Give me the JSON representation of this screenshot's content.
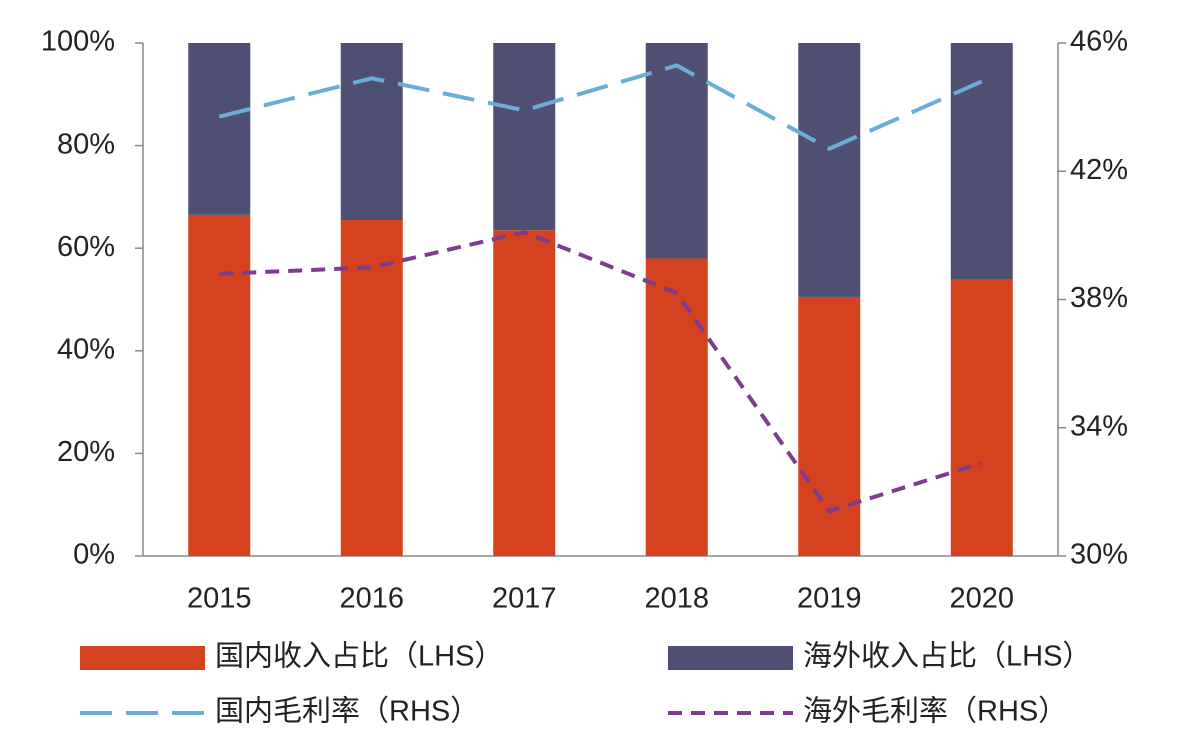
{
  "chart_data": {
    "type": "bar-line",
    "categories": [
      "2015",
      "2016",
      "2017",
      "2018",
      "2019",
      "2020"
    ],
    "series": [
      {
        "name": "国内收入占比（LHS）",
        "type": "bar",
        "color": "#d4421f",
        "values": [
          66.5,
          65.5,
          63.5,
          58,
          50.5,
          54
        ]
      },
      {
        "name": "海外收入占比（LHS）",
        "type": "bar",
        "color": "#4f4f73",
        "values": [
          33.5,
          34.5,
          36.5,
          42,
          49.5,
          46
        ]
      },
      {
        "name": "国内毛利率（RHS）",
        "type": "line",
        "axis": "y2",
        "dash": "long",
        "color": "#6aaed6",
        "values": [
          43.7,
          44.9,
          43.9,
          45.3,
          42.7,
          44.8
        ]
      },
      {
        "name": "海外毛利率（RHS）",
        "type": "line",
        "axis": "y2",
        "dash": "short",
        "color": "#7d3c8c",
        "values": [
          38.8,
          39,
          40.1,
          38.2,
          31.4,
          32.9
        ]
      }
    ],
    "ylim": [
      0,
      100
    ],
    "yticks": [
      {
        "value": 0,
        "label": "0%"
      },
      {
        "value": 20,
        "label": "20%"
      },
      {
        "value": 40,
        "label": "40%"
      },
      {
        "value": 60,
        "label": "60%"
      },
      {
        "value": 80,
        "label": "80%"
      },
      {
        "value": 100,
        "label": "100%"
      }
    ],
    "y2lim": [
      30,
      46
    ],
    "y2ticks": [
      {
        "value": 30,
        "label": "30%"
      },
      {
        "value": 34,
        "label": "34%"
      },
      {
        "value": 38,
        "label": "38%"
      },
      {
        "value": 42,
        "label": "42%"
      },
      {
        "value": 46,
        "label": "46%"
      }
    ],
    "stacked": true
  }
}
